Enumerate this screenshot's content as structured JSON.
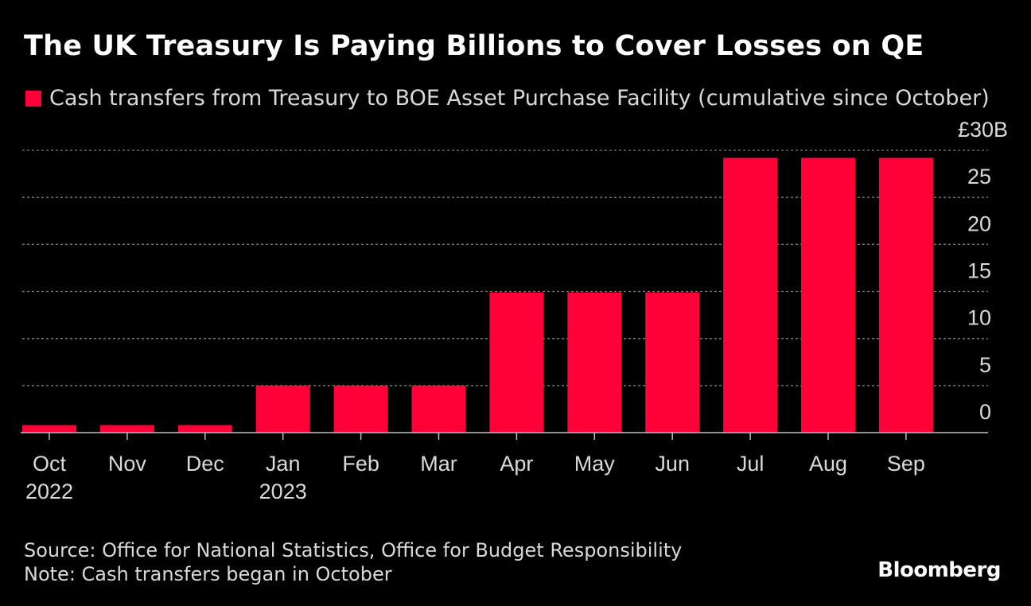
{
  "chart_data": {
    "type": "bar",
    "title": "The UK Treasury Is Paying Billions to Cover Losses on QE",
    "legend": "Cash transfers from Treasury to BOE Asset Purchase Facility (cumulative since October)",
    "categories": [
      {
        "month": "Oct",
        "year": "2022"
      },
      {
        "month": "Nov",
        "year": ""
      },
      {
        "month": "Dec",
        "year": ""
      },
      {
        "month": "Jan",
        "year": "2023"
      },
      {
        "month": "Feb",
        "year": ""
      },
      {
        "month": "Mar",
        "year": ""
      },
      {
        "month": "Apr",
        "year": ""
      },
      {
        "month": "May",
        "year": ""
      },
      {
        "month": "Jun",
        "year": ""
      },
      {
        "month": "Jul",
        "year": ""
      },
      {
        "month": "Aug",
        "year": ""
      },
      {
        "month": "Sep",
        "year": ""
      }
    ],
    "values": [
      0.8,
      0.8,
      0.8,
      5.0,
      5.0,
      5.0,
      14.9,
      14.9,
      14.9,
      29.2,
      29.2,
      29.2
    ],
    "ylim": [
      0,
      30
    ],
    "yticks": [
      0,
      5,
      10,
      15,
      20,
      25,
      30
    ],
    "ytick_labels": [
      "0",
      "5",
      "10",
      "15",
      "20",
      "25",
      "£30B"
    ],
    "y_axis_side": "right",
    "grid": true,
    "xlabel": "",
    "ylabel": "",
    "bar_color": "#ff0039"
  },
  "footer": {
    "source": "Source: Office for National Statistics, Office for Budget Responsibility",
    "note": "Note: Cash transfers began in October"
  },
  "brand": "Bloomberg"
}
